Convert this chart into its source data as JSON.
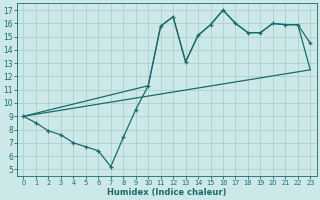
{
  "xlabel": "Humidex (Indice chaleur)",
  "background_color": "#cce8e8",
  "grid_color": "#b0d4d4",
  "line_color": "#1a6b6b",
  "xlim": [
    -0.5,
    23.5
  ],
  "ylim": [
    4.5,
    17.5
  ],
  "xticks": [
    0,
    1,
    2,
    3,
    4,
    5,
    6,
    7,
    8,
    9,
    10,
    11,
    12,
    13,
    14,
    15,
    16,
    17,
    18,
    19,
    20,
    21,
    22,
    23
  ],
  "yticks": [
    5,
    6,
    7,
    8,
    9,
    10,
    11,
    12,
    13,
    14,
    15,
    16,
    17
  ],
  "line1_x": [
    0,
    1,
    2,
    3,
    4,
    5,
    6,
    7,
    8,
    9,
    10,
    11,
    12,
    13,
    14,
    15,
    16,
    17,
    18,
    19,
    20,
    21,
    22,
    23
  ],
  "line1_y": [
    9.0,
    8.5,
    7.9,
    7.6,
    7.0,
    6.7,
    6.4,
    5.2,
    7.4,
    9.5,
    11.3,
    15.8,
    16.5,
    13.1,
    15.1,
    15.9,
    17.0,
    16.0,
    15.3,
    15.3,
    16.0,
    15.9,
    15.9,
    14.5
  ],
  "line2_x": [
    0,
    23
  ],
  "line2_y": [
    9.0,
    12.5
  ],
  "line3_x": [
    0,
    10,
    11,
    12,
    13,
    14,
    15,
    16,
    17,
    18,
    19,
    20,
    21,
    22,
    23
  ],
  "line3_y": [
    9.0,
    11.3,
    15.8,
    16.5,
    13.1,
    15.1,
    15.9,
    17.0,
    16.0,
    15.3,
    15.3,
    16.0,
    15.9,
    15.9,
    12.5
  ]
}
